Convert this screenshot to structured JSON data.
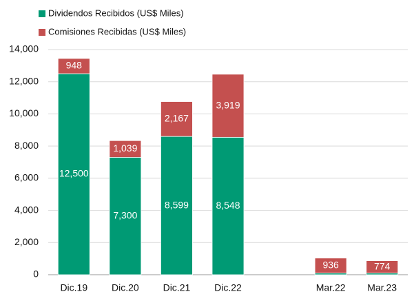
{
  "chart_data": {
    "type": "stacked_bar",
    "categories": [
      "Dic.19",
      "Dic.20",
      "Dic.21",
      "Dic.22",
      null,
      "Mar.22",
      "Mar.23"
    ],
    "series": [
      {
        "name": "Dividendos Recibidos (US$ Miles)",
        "color": "#009a74",
        "values": [
          12500,
          7300,
          8599,
          8548,
          null,
          100,
          100
        ],
        "value_labels": [
          "12,500",
          "7,300",
          "8,599",
          "8,548",
          null,
          null,
          null
        ]
      },
      {
        "name": "Comisiones Recibidas  (US$ Miles)",
        "color": "#c4504f",
        "values": [
          948,
          1039,
          2167,
          3919,
          null,
          936,
          774
        ],
        "value_labels": [
          "948",
          "1,039",
          "2,167",
          "3,919",
          null,
          "936",
          "774"
        ]
      }
    ],
    "ylim": [
      0,
      14000
    ],
    "yticks": [
      0,
      {
        "value": 2000,
        "label": "2,000"
      },
      {
        "value": 4000,
        "label": "4,000"
      },
      {
        "value": 6000,
        "label": "6,000"
      },
      {
        "value": 8000,
        "label": "8,000"
      },
      {
        "value": 10000,
        "label": "10,000"
      },
      {
        "value": 12000,
        "label": "12,000"
      },
      {
        "value": 14000,
        "label": "14,000"
      }
    ],
    "grid": true,
    "legend": "top-left"
  }
}
